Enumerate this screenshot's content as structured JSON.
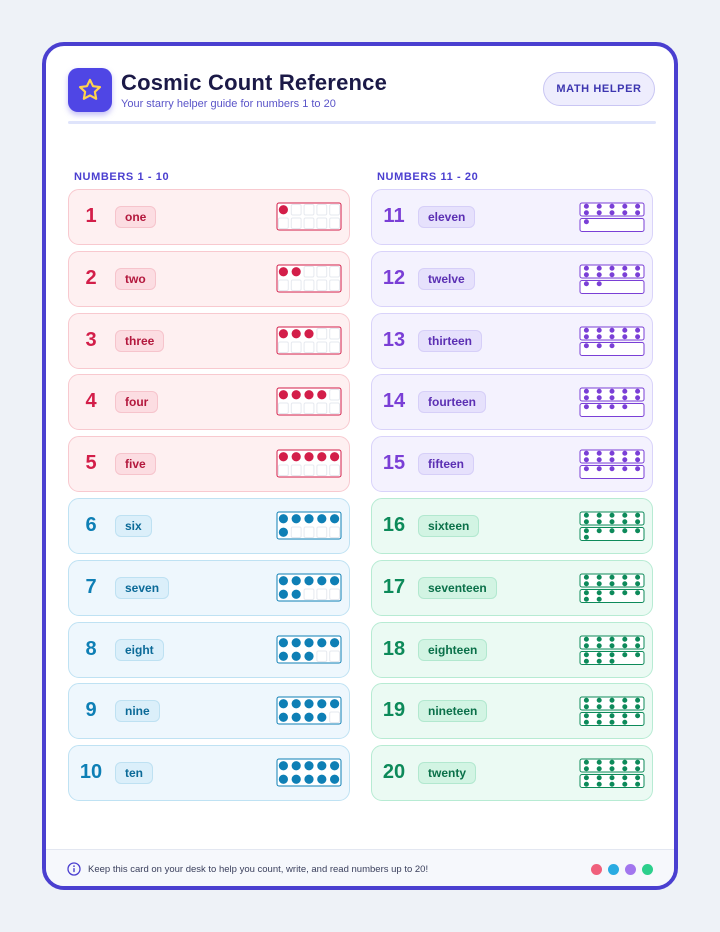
{
  "header": {
    "title": "Cosmic Count Reference",
    "subtitle": "Your starry helper guide for numbers 1 to 20",
    "badge": "MATH HELPER",
    "logo_icon": "star-icon"
  },
  "columns": [
    {
      "heading": "NUMBERS 1 - 10",
      "items": [
        {
          "number": "1",
          "word": "one",
          "count": 1,
          "theme": "red"
        },
        {
          "number": "2",
          "word": "two",
          "count": 2,
          "theme": "red"
        },
        {
          "number": "3",
          "word": "three",
          "count": 3,
          "theme": "red"
        },
        {
          "number": "4",
          "word": "four",
          "count": 4,
          "theme": "red"
        },
        {
          "number": "5",
          "word": "five",
          "count": 5,
          "theme": "red"
        },
        {
          "number": "6",
          "word": "six",
          "count": 6,
          "theme": "blue"
        },
        {
          "number": "7",
          "word": "seven",
          "count": 7,
          "theme": "blue"
        },
        {
          "number": "8",
          "word": "eight",
          "count": 8,
          "theme": "blue"
        },
        {
          "number": "9",
          "word": "nine",
          "count": 9,
          "theme": "blue"
        },
        {
          "number": "10",
          "word": "ten",
          "count": 10,
          "theme": "blue"
        }
      ]
    },
    {
      "heading": "NUMBERS 11 - 20",
      "items": [
        {
          "number": "11",
          "word": "eleven",
          "count": 11,
          "theme": "purple"
        },
        {
          "number": "12",
          "word": "twelve",
          "count": 12,
          "theme": "purple"
        },
        {
          "number": "13",
          "word": "thirteen",
          "count": 13,
          "theme": "purple"
        },
        {
          "number": "14",
          "word": "fourteen",
          "count": 14,
          "theme": "purple"
        },
        {
          "number": "15",
          "word": "fifteen",
          "count": 15,
          "theme": "purple"
        },
        {
          "number": "16",
          "word": "sixteen",
          "count": 16,
          "theme": "green"
        },
        {
          "number": "17",
          "word": "seventeen",
          "count": 17,
          "theme": "green"
        },
        {
          "number": "18",
          "word": "eighteen",
          "count": 18,
          "theme": "green"
        },
        {
          "number": "19",
          "word": "nineteen",
          "count": 19,
          "theme": "green"
        },
        {
          "number": "20",
          "word": "twenty",
          "count": 20,
          "theme": "green"
        }
      ]
    }
  ],
  "colors": {
    "red": "#d31e49",
    "blue": "#0e7fb5",
    "purple": "#7a3fd6",
    "green": "#0d8a5a",
    "accent": "#4f46e5"
  },
  "footer": {
    "info_icon": "info-icon",
    "text": "Keep this card on your desk to help you count, write, and read numbers up to 20!",
    "legend_dots": [
      "#f0607c",
      "#29abe2",
      "#a276ee",
      "#2ccf8c"
    ]
  }
}
